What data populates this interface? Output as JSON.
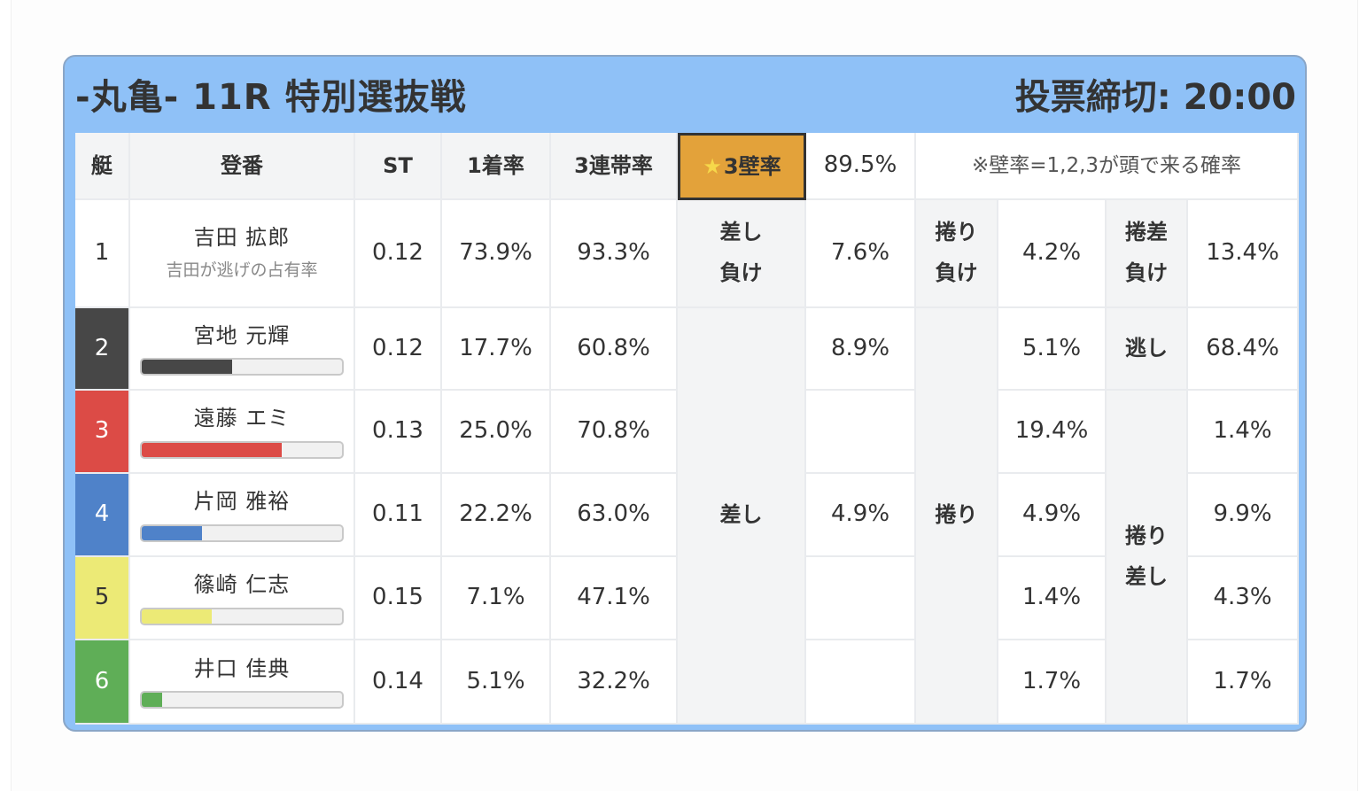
{
  "header": {
    "title": "-丸亀- 11R 特別選抜戦",
    "deadline": "投票締切: 20:00"
  },
  "table": {
    "headers": {
      "boat": "艇",
      "racer": "登番",
      "st": "ST",
      "first_rate": "1着率",
      "trio_rate": "3連帯率",
      "wall_label": "3壁率",
      "wall_value": "89.5%",
      "note": "※壁率=1,2,3が頭で来る確率"
    },
    "rows": [
      {
        "num": "1",
        "name": "吉田 拡郎",
        "sub": "吉田が逃げの占有率",
        "st": "0.12",
        "first": "73.9%",
        "trio": "93.3%"
      },
      {
        "num": "2",
        "name": "宮地 元輝",
        "bar": 0.45,
        "st": "0.12",
        "first": "17.7%",
        "trio": "60.8%"
      },
      {
        "num": "3",
        "name": "遠藤 エミ",
        "bar": 0.7,
        "st": "0.13",
        "first": "25.0%",
        "trio": "70.8%"
      },
      {
        "num": "4",
        "name": "片岡 雅裕",
        "bar": 0.3,
        "st": "0.11",
        "first": "22.2%",
        "trio": "63.0%"
      },
      {
        "num": "5",
        "name": "篠崎 仁志",
        "bar": 0.35,
        "st": "0.15",
        "first": "7.1%",
        "trio": "47.1%"
      },
      {
        "num": "6",
        "name": "井口 佳典",
        "bar": 0.1,
        "st": "0.14",
        "first": "5.1%",
        "trio": "32.2%"
      }
    ],
    "boat_colors": [
      "#ffffff",
      "#474747",
      "#dc4b46",
      "#4f82c9",
      "#ecea76",
      "#5fae57"
    ],
    "patterns": {
      "sashi_make_l1": "差し",
      "sashi_make_l2": "負け",
      "sashi_make_val": "7.6%",
      "makuri_make_l1": "捲り",
      "makuri_make_l2": "負け",
      "makuri_make_val": "4.2%",
      "makuzashi_make_l1": "捲差",
      "makuzashi_make_l2": "負け",
      "makuzashi_make_val": "13.4%",
      "sashi": "差し",
      "sashi_vals": [
        "8.9%",
        "",
        "4.9%",
        "",
        ""
      ],
      "makuri": "捲り",
      "makuri_vals": [
        "5.1%",
        "19.4%",
        "4.9%",
        "1.4%",
        "1.7%"
      ],
      "nige": "逃し",
      "nige_val": "68.4%",
      "makuzashi_l1": "捲り",
      "makuzashi_l2": "差し",
      "makuzashi_vals": [
        "1.4%",
        "9.9%",
        "4.3%",
        "1.7%"
      ]
    }
  }
}
